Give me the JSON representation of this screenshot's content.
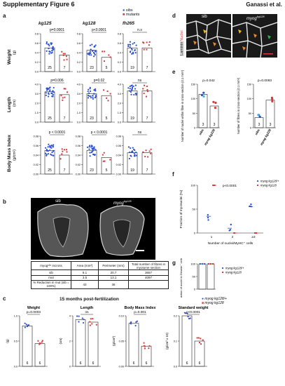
{
  "header": {
    "title": "Supplementary Figure 6",
    "authors": "Ganassi et al."
  },
  "panel_labels": {
    "a": "a",
    "b": "b",
    "c": "c",
    "d": "d",
    "e": "e",
    "f": "f",
    "g": "g"
  },
  "colors": {
    "sib": "#2a4fd0",
    "mutant": "#d83a3a",
    "ns_green": "#29b34a"
  },
  "panel_a": {
    "legend": {
      "sibs": "sibs",
      "mutants": "mutants"
    },
    "columns": [
      "kg125",
      "kg128",
      "fh265"
    ],
    "rows": [
      {
        "label": "Weight",
        "unit": "(g)",
        "yticks": [
          "0.0",
          "0.2",
          "0.4",
          "0.6",
          "0.8"
        ],
        "pvals": [
          "p=0.0001",
          "p<0.0001",
          "n.s"
        ],
        "ns": [
          [
            "25",
            "7"
          ],
          [
            "23",
            "5"
          ],
          [
            "19",
            "7"
          ]
        ]
      },
      {
        "label": "Length",
        "unit": "(cm)",
        "yticks": [
          "0.0",
          "1.0",
          "2.0",
          "3.0",
          "4.0"
        ],
        "pvals": [
          "p=0.006",
          "p=0.02",
          "ns"
        ],
        "ns": [
          [
            "25",
            "7"
          ],
          [
            "23",
            "5"
          ],
          [
            "19",
            "7"
          ]
        ]
      },
      {
        "label": "Body Mass Index",
        "unit": "(g/cm²)",
        "yticks": [
          "0.00",
          "0.02",
          "0.04",
          "0.06",
          "0.08"
        ],
        "pvals": [
          "p < 0.0001",
          "p < 0.0001",
          "ns"
        ],
        "ns": [
          [
            "25",
            "7"
          ],
          [
            "23",
            "5"
          ],
          [
            "19",
            "7"
          ]
        ]
      }
    ]
  },
  "panel_b": {
    "sib_label": "sib",
    "mut_label": "myog",
    "mut_sup": "kg128",
    "table": {
      "headers": [
        "myog¹²⁸ incross",
        "Area (mm²)",
        "Perimeter (mm)",
        "Total number of fibres in myotome section"
      ],
      "rows": [
        [
          "sib",
          "6.1",
          "20.7",
          "3657"
        ],
        [
          "mut",
          "3.5",
          "13.1",
          "4097"
        ],
        [
          "% Reduction in mut (sib = 100%)",
          "43",
          "36",
          ""
        ]
      ]
    }
  },
  "panel_c": {
    "title": "15 months post-fertilization",
    "legend": {
      "sib": "myog kg128/+",
      "mut": "myog kg128"
    },
    "plots": [
      {
        "title": "Weight",
        "unit": "(g)",
        "pval": "p=0.0003",
        "ns": [
          "6",
          "6"
        ],
        "yticks": [
          "0.0",
          "0.5",
          "1.0"
        ]
      },
      {
        "title": "Length",
        "unit": "(cm)",
        "pval": "ns",
        "ns": [
          "6",
          "6"
        ],
        "yticks": [
          "0",
          "2",
          "4"
        ]
      },
      {
        "title": "Body Mass Index",
        "unit": "(g/cm²)",
        "pval": "p=0.001",
        "ns": [
          "6",
          "6"
        ],
        "yticks": [
          "0.00",
          "0.05",
          "0.10"
        ]
      },
      {
        "title": "Standard weight",
        "unit": "(g/cm³ x 10)",
        "pval": "p<0.0001",
        "ns": [
          "6",
          "6"
        ],
        "yticks": [
          "0.0",
          "0.1",
          "0.2"
        ]
      }
    ]
  },
  "panel_d": {
    "stain_laminin": "Laminin",
    "stain_nuclei": "Nuclei",
    "sib": "sib",
    "mut": "myog",
    "mut_sup": "kg128"
  },
  "panel_e": {
    "left": {
      "ylabel": "Number of nuclei within fibre in cross-section (0.1 mm²)",
      "pval": "p=0.042",
      "xlabels": [
        "sibs",
        "myog kg128"
      ],
      "ns": [
        "3",
        "3"
      ],
      "yticks": [
        "0",
        "50",
        "100",
        "150"
      ]
    },
    "right": {
      "ylabel": "Number of fibres in cross-section (0.1 mm²)",
      "pval": "p=0.0093",
      "xlabels": [
        "sibs",
        "myog kg128"
      ],
      "ns": [
        "3",
        "3"
      ],
      "yticks": [
        "0",
        "50",
        "100",
        "150"
      ]
    }
  },
  "panel_f": {
    "ylabel": "Fraction of myonuclei (%)",
    "xlabel": "Number of nuclei/MyHC⁺ cells",
    "pval": "p<0.0001",
    "legend": [
      "myog kg128/+",
      "myog kg128"
    ],
    "xcats": [
      "1",
      "2",
      "≥3"
    ],
    "yticks": [
      "0",
      "50",
      "100"
    ]
  },
  "panel_g": {
    "ylabel": "Fraction of nuclei in Desmin⁺ cells (%)",
    "legend": [
      "myog kg128/+",
      "myog kg128"
    ],
    "yticks": [
      "0",
      "50",
      "100"
    ]
  },
  "chart_data": [
    {
      "type": "scatter",
      "title": "Panel a kg125 Weight",
      "categories": [
        "sibs",
        "mutants"
      ],
      "series": [
        {
          "name": "sibs",
          "values": [
            0.5
          ]
        },
        {
          "name": "mutants",
          "values": [
            0.35
          ]
        }
      ],
      "ylabel": "Weight (g)",
      "ylim": [
        0,
        0.8
      ]
    },
    {
      "type": "scatter",
      "title": "Panel a kg128 Weight",
      "categories": [
        "sibs",
        "mutants"
      ],
      "series": [
        {
          "name": "sibs",
          "values": [
            0.45
          ]
        },
        {
          "name": "mutants",
          "values": [
            0.3
          ]
        }
      ],
      "ylabel": "Weight (g)",
      "ylim": [
        0,
        0.8
      ]
    },
    {
      "type": "scatter",
      "title": "Panel a fh265 Weight",
      "categories": [
        "sibs",
        "mutants"
      ],
      "series": [
        {
          "name": "sibs",
          "values": [
            0.5
          ]
        },
        {
          "name": "mutants",
          "values": [
            0.5
          ]
        }
      ],
      "ylabel": "Weight (g)",
      "ylim": [
        0,
        0.8
      ]
    },
    {
      "type": "scatter",
      "title": "Panel a Length",
      "categories": [
        "kg125 sib",
        "kg125 mut",
        "kg128 sib",
        "kg128 mut",
        "fh265 sib",
        "fh265 mut"
      ],
      "values": [
        3.2,
        2.9,
        3.0,
        2.8,
        3.3,
        3.3
      ],
      "ylabel": "Length (cm)",
      "ylim": [
        0,
        4
      ]
    },
    {
      "type": "scatter",
      "title": "Panel a Body Mass Index",
      "categories": [
        "kg125 sib",
        "kg125 mut",
        "kg128 sib",
        "kg128 mut",
        "fh265 sib",
        "fh265 mut"
      ],
      "values": [
        0.05,
        0.04,
        0.05,
        0.035,
        0.045,
        0.045
      ],
      "ylabel": "BMI (g/cm2)",
      "ylim": [
        0,
        0.08
      ]
    },
    {
      "type": "bar",
      "title": "Panel c Weight",
      "categories": [
        "myog kg128/+",
        "myog kg128"
      ],
      "values": [
        0.8,
        0.45
      ],
      "ylabel": "(g)",
      "ylim": [
        0,
        1
      ]
    },
    {
      "type": "bar",
      "title": "Panel c Length",
      "categories": [
        "myog kg128/+",
        "myog kg128"
      ],
      "values": [
        3.7,
        3.5
      ],
      "ylabel": "(cm)",
      "ylim": [
        0,
        4
      ]
    },
    {
      "type": "bar",
      "title": "Panel c BMI",
      "categories": [
        "myog kg128/+",
        "myog kg128"
      ],
      "values": [
        0.085,
        0.04
      ],
      "ylabel": "(g/cm2)",
      "ylim": [
        0,
        0.1
      ]
    },
    {
      "type": "bar",
      "title": "Panel c Standard weight",
      "categories": [
        "myog kg128/+",
        "myog kg128"
      ],
      "values": [
        0.2,
        0.1
      ],
      "ylabel": "(g/cm3 x 10)",
      "ylim": [
        0,
        0.2
      ]
    },
    {
      "type": "bar",
      "title": "Panel e nuclei",
      "categories": [
        "sibs",
        "myog kg128"
      ],
      "values": [
        115,
        75
      ],
      "ylim": [
        0,
        150
      ]
    },
    {
      "type": "bar",
      "title": "Panel e fibres",
      "categories": [
        "sibs",
        "myog kg128"
      ],
      "values": [
        35,
        95
      ],
      "ylim": [
        0,
        150
      ]
    },
    {
      "type": "scatter",
      "title": "Panel f",
      "categories": [
        "1",
        "2",
        ">=3"
      ],
      "series": [
        {
          "name": "myog kg128/+",
          "values": [
            35,
            10,
            55
          ]
        },
        {
          "name": "myog kg128",
          "values": [
            100,
            0,
            0
          ]
        }
      ],
      "ylim": [
        0,
        100
      ]
    },
    {
      "type": "bar",
      "title": "Panel g",
      "categories": [
        "myog kg128/+",
        "myog kg128"
      ],
      "values": [
        100,
        100
      ],
      "ylim": [
        0,
        100
      ]
    }
  ]
}
